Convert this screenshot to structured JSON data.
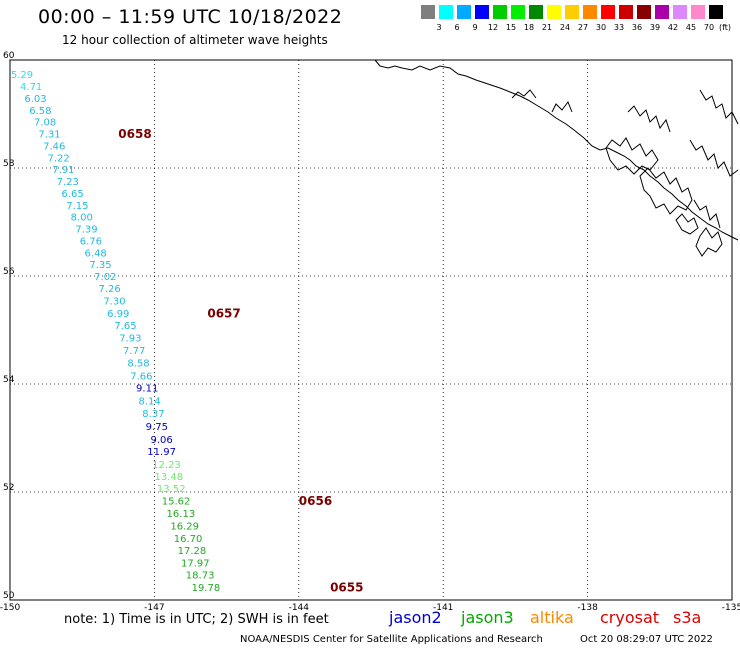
{
  "header": {
    "title": "00:00 – 11:59 UTC 10/18/2022",
    "subtitle": "12 hour collection of altimeter wave heights"
  },
  "legend": {
    "unit": "(ft)",
    "colors": [
      "#7f7f7f",
      "#00ffff",
      "#00aaff",
      "#0000ff",
      "#00cc00",
      "#00ee00",
      "#008800",
      "#ffff00",
      "#ffcc00",
      "#ff8800",
      "#ff0000",
      "#cc0000",
      "#880000",
      "#aa00aa",
      "#dd88ff",
      "#ff88cc",
      "#000000"
    ],
    "ticks": [
      "3",
      "6",
      "9",
      "12",
      "15",
      "18",
      "21",
      "24",
      "27",
      "30",
      "33",
      "36",
      "39",
      "42",
      "45",
      "70"
    ]
  },
  "map": {
    "lon_range": [
      -150,
      -135
    ],
    "lat_range": [
      50,
      60
    ],
    "lat_ticks": [
      "60",
      "58",
      "56",
      "54",
      "52",
      "50"
    ],
    "lon_ticks": [
      "-150",
      "-147",
      "-144",
      "-141",
      "-138",
      "-135"
    ],
    "grid": "dotted"
  },
  "observations": [
    {
      "lat": 59.72,
      "lon": -149.75,
      "h": "5.29",
      "c": "#33dddd"
    },
    {
      "lat": 59.5,
      "lon": -149.56,
      "h": "4.71",
      "c": "#33dddd"
    },
    {
      "lat": 59.28,
      "lon": -149.47,
      "h": "6.03",
      "c": "#22bbdd"
    },
    {
      "lat": 59.06,
      "lon": -149.37,
      "h": "6.58",
      "c": "#22bbdd"
    },
    {
      "lat": 58.84,
      "lon": -149.27,
      "h": "7.08",
      "c": "#22bbdd"
    },
    {
      "lat": 58.62,
      "lon": -149.18,
      "h": "7.31",
      "c": "#22bbdd"
    },
    {
      "lat": 58.4,
      "lon": -149.08,
      "h": "7.46",
      "c": "#22bbdd"
    },
    {
      "lat": 58.18,
      "lon": -148.99,
      "h": "7.22",
      "c": "#22bbdd"
    },
    {
      "lat": 57.96,
      "lon": -148.89,
      "h": "7.91",
      "c": "#22bbdd"
    },
    {
      "lat": 57.74,
      "lon": -148.8,
      "h": "7.23",
      "c": "#22bbdd"
    },
    {
      "lat": 57.52,
      "lon": -148.7,
      "h": "6.65",
      "c": "#22bbdd"
    },
    {
      "lat": 57.3,
      "lon": -148.6,
      "h": "7.15",
      "c": "#22bbdd"
    },
    {
      "lat": 57.08,
      "lon": -148.51,
      "h": "8.00",
      "c": "#22bbdd"
    },
    {
      "lat": 56.86,
      "lon": -148.41,
      "h": "7.39",
      "c": "#22bbdd"
    },
    {
      "lat": 56.64,
      "lon": -148.32,
      "h": "6.76",
      "c": "#22bbdd"
    },
    {
      "lat": 56.42,
      "lon": -148.22,
      "h": "6.48",
      "c": "#22bbdd"
    },
    {
      "lat": 56.2,
      "lon": -148.12,
      "h": "7.35",
      "c": "#22bbdd"
    },
    {
      "lat": 55.98,
      "lon": -148.02,
      "h": "7.02",
      "c": "#22bbdd"
    },
    {
      "lat": 55.76,
      "lon": -147.93,
      "h": "7.26",
      "c": "#22bbdd"
    },
    {
      "lat": 55.53,
      "lon": -147.83,
      "h": "7.30",
      "c": "#22bbdd"
    },
    {
      "lat": 55.3,
      "lon": -147.75,
      "h": "6.99",
      "c": "#22bbdd"
    },
    {
      "lat": 55.07,
      "lon": -147.6,
      "h": "7.65",
      "c": "#22bbdd"
    },
    {
      "lat": 54.84,
      "lon": -147.5,
      "h": "7.93",
      "c": "#22bbdd"
    },
    {
      "lat": 54.61,
      "lon": -147.42,
      "h": "7.77",
      "c": "#22bbdd"
    },
    {
      "lat": 54.38,
      "lon": -147.33,
      "h": "8.58",
      "c": "#22bbdd"
    },
    {
      "lat": 54.14,
      "lon": -147.27,
      "h": "7.66",
      "c": "#22bbdd"
    },
    {
      "lat": 53.92,
      "lon": -147.15,
      "h": "9.11",
      "c": "#0000cc"
    },
    {
      "lat": 53.68,
      "lon": -147.1,
      "h": "8.14",
      "c": "#22bbdd"
    },
    {
      "lat": 53.44,
      "lon": -147.02,
      "h": "8.37",
      "c": "#22bbdd"
    },
    {
      "lat": 53.2,
      "lon": -146.95,
      "h": "9.75",
      "c": "#0000cc"
    },
    {
      "lat": 52.96,
      "lon": -146.85,
      "h": "9.06",
      "c": "#0000cc"
    },
    {
      "lat": 52.74,
      "lon": -146.85,
      "h": "11.97",
      "c": "#0000cc"
    },
    {
      "lat": 52.5,
      "lon": -146.75,
      "h": "12.23",
      "c": "#66ee66"
    },
    {
      "lat": 52.28,
      "lon": -146.7,
      "h": "13.48",
      "c": "#66ee66"
    },
    {
      "lat": 52.06,
      "lon": -146.65,
      "h": "13.52",
      "c": "#66ee66"
    },
    {
      "lat": 51.82,
      "lon": -146.55,
      "h": "15.62",
      "c": "#22aa22"
    },
    {
      "lat": 51.59,
      "lon": -146.45,
      "h": "16.13",
      "c": "#22aa22"
    },
    {
      "lat": 51.36,
      "lon": -146.37,
      "h": "16.29",
      "c": "#22aa22"
    },
    {
      "lat": 51.13,
      "lon": -146.3,
      "h": "16.70",
      "c": "#22aa22"
    },
    {
      "lat": 50.91,
      "lon": -146.22,
      "h": "17.28",
      "c": "#22aa22"
    },
    {
      "lat": 50.68,
      "lon": -146.15,
      "h": "17.97",
      "c": "#22aa22"
    },
    {
      "lat": 50.45,
      "lon": -146.05,
      "h": "18.73",
      "c": "#22aa22"
    },
    {
      "lat": 50.22,
      "lon": -145.93,
      "h": "19.78",
      "c": "#22aa22"
    }
  ],
  "passes": [
    {
      "lat": 58.62,
      "lon": -147.75,
      "t": "0658"
    },
    {
      "lat": 55.3,
      "lon": -145.9,
      "t": "0657"
    },
    {
      "lat": 51.82,
      "lon": -144.0,
      "t": "0656"
    },
    {
      "lat": 50.22,
      "lon": -143.35,
      "t": "0655"
    }
  ],
  "footer": {
    "note": "note: 1) Time is in UTC; 2) SWH is in feet",
    "satellites": [
      {
        "name": "jason2",
        "color": "#0000cc"
      },
      {
        "name": "jason3",
        "color": "#00aa00"
      },
      {
        "name": "altika",
        "color": "#ff8800"
      },
      {
        "name": "cryosat",
        "color": "#dd0000"
      },
      {
        "name": "s3a",
        "color": "#dd0000"
      }
    ],
    "credit": "NOAA/NESDIS Center for Satellite Applications and Research",
    "generated": "Oct 20 08:29:07 UTC 2022"
  }
}
